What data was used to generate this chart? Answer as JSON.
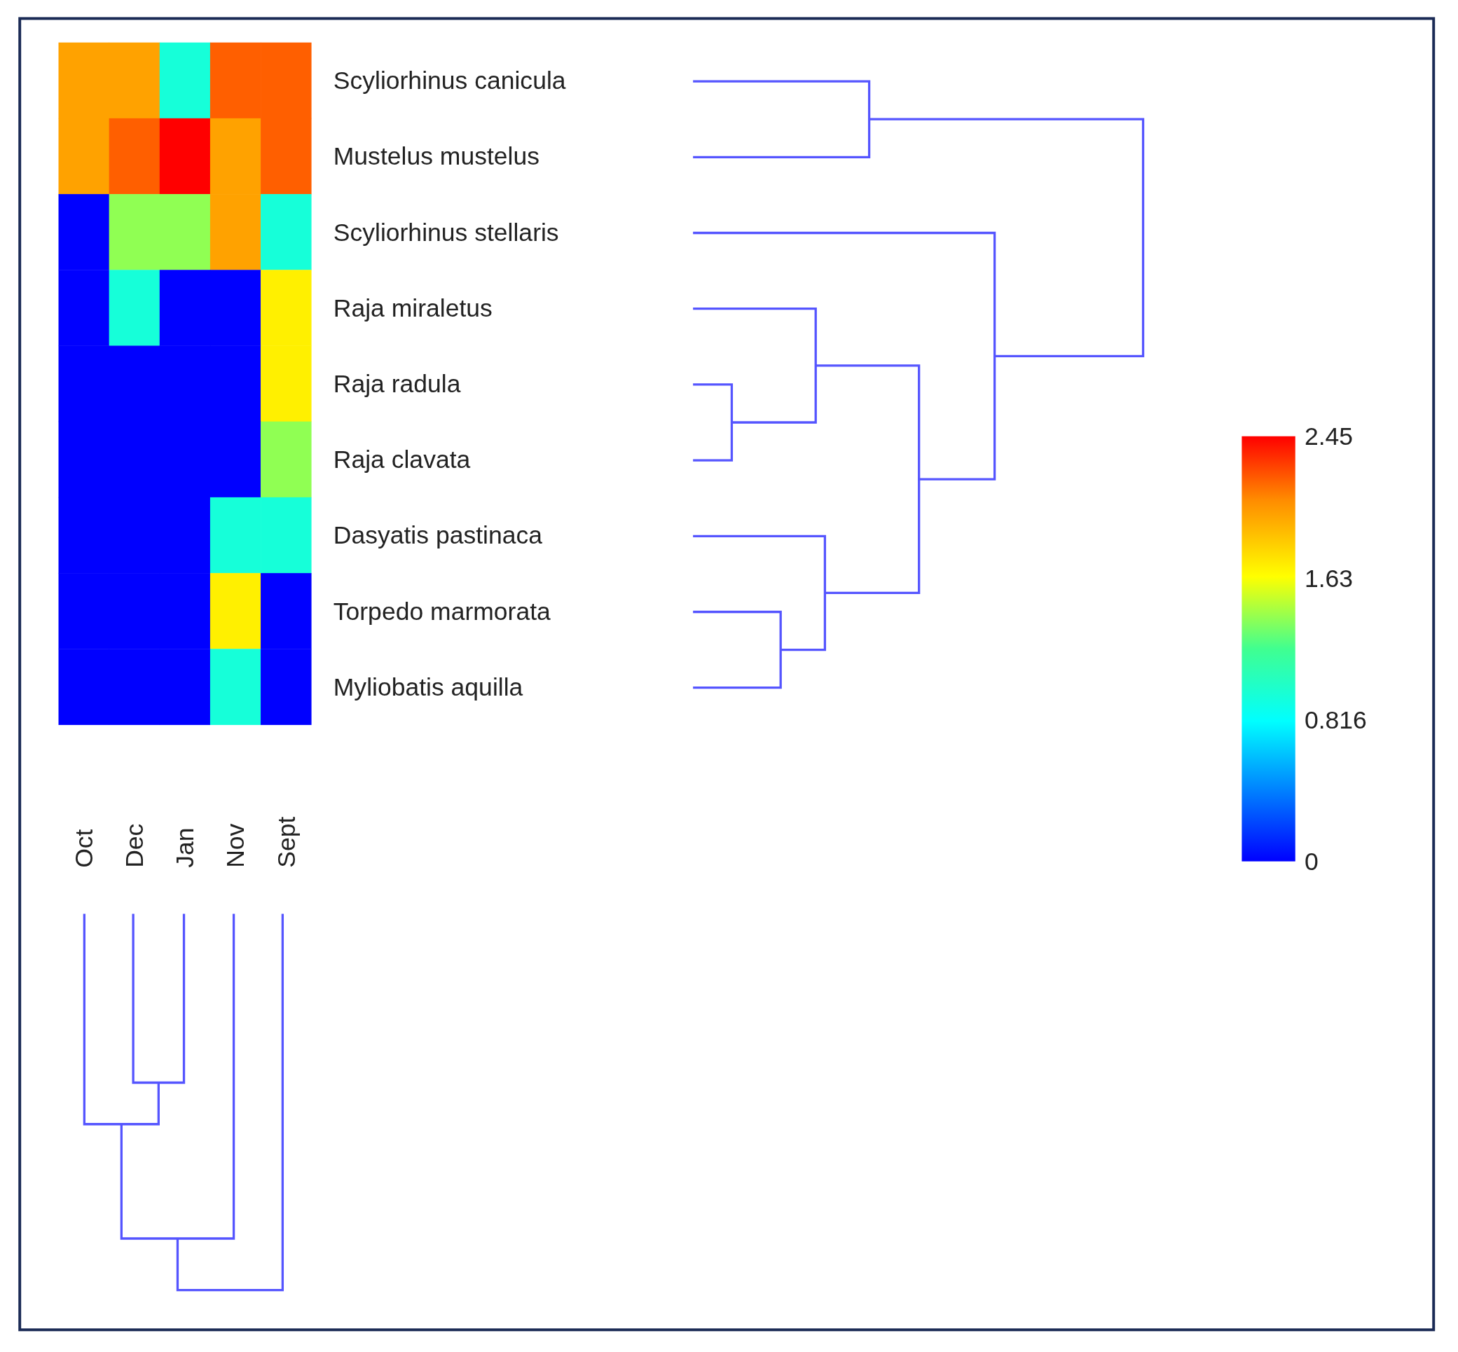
{
  "chart_data": {
    "type": "heatmap",
    "categories": [
      "Oct",
      "Dec",
      "Jan",
      "Nov",
      "Sept"
    ],
    "y_categories": [
      "Scyliorhinus canicula",
      "Mustelus mustelus",
      "Scyliorhinus stellaris",
      "Raja miraletus",
      "Raja radula",
      "Raja clavata",
      "Dasyatis pastinaca",
      "Torpedo marmorata",
      "Myliobatis aquilla"
    ],
    "cells": [
      [
        2.0,
        2.0,
        0.95,
        2.2,
        2.2
      ],
      [
        2.0,
        2.2,
        2.45,
        2.0,
        2.2
      ],
      [
        0,
        1.4,
        1.4,
        2.0,
        0.95
      ],
      [
        0,
        0.95,
        0,
        0,
        1.7
      ],
      [
        0,
        0,
        0,
        0,
        1.7
      ],
      [
        0,
        0,
        0,
        0,
        1.4
      ],
      [
        0,
        0,
        0,
        0.95,
        0.95
      ],
      [
        0,
        0,
        0,
        1.7,
        0
      ],
      [
        0,
        0,
        0,
        0.95,
        0
      ]
    ],
    "clim": [
      0,
      2.45
    ],
    "cticks": [
      0,
      0.816,
      1.63,
      2.45
    ]
  }
}
